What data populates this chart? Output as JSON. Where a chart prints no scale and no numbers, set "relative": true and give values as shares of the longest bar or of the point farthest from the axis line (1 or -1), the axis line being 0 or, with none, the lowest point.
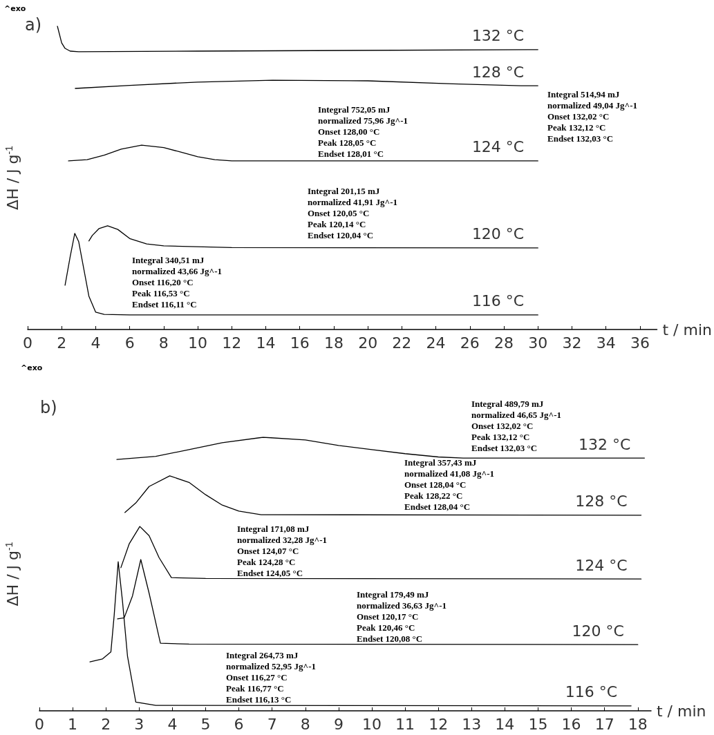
{
  "chart_data": [
    {
      "type": "line",
      "title": "a)",
      "xlabel": "t / min",
      "ylabel": "ΔH / J g$^{-1}$",
      "relative": true,
      "marker": "none",
      "line_style": "solid",
      "xlim": [
        0,
        37
      ],
      "xticks": [
        0,
        2,
        4,
        6,
        8,
        10,
        12,
        14,
        16,
        18,
        20,
        22,
        24,
        26,
        28,
        30,
        32,
        34,
        36
      ],
      "series": [
        {
          "name": "132 °C",
          "color": "#000000",
          "x": [
            1.75,
            2.0,
            2.2,
            2.5,
            3,
            10,
            30
          ],
          "values": [
            1.0,
            0.945,
            0.927,
            0.918,
            0.916,
            0.918,
            0.923
          ]
        },
        {
          "name": "128 °C",
          "color": "#000000",
          "x": [
            2.8,
            6,
            10,
            14.4,
            20,
            25,
            29,
            30
          ],
          "values": [
            0.795,
            0.805,
            0.816,
            0.822,
            0.82,
            0.81,
            0.804,
            0.804
          ]
        },
        {
          "name": "124 °C",
          "color": "#000000",
          "x": [
            2.4,
            3.5,
            4.5,
            5.5,
            6.7,
            8,
            9,
            10,
            11,
            12,
            30
          ],
          "values": [
            0.556,
            0.56,
            0.575,
            0.595,
            0.608,
            0.6,
            0.585,
            0.57,
            0.56,
            0.556,
            0.556
          ]
        },
        {
          "name": "120 °C",
          "color": "#000000",
          "x": [
            3.6,
            3.8,
            4.2,
            4.7,
            5.3,
            6,
            7,
            8,
            12,
            30
          ],
          "values": [
            0.292,
            0.31,
            0.333,
            0.342,
            0.33,
            0.3,
            0.282,
            0.276,
            0.27,
            0.269
          ]
        },
        {
          "name": "116 °C",
          "color": "#000000",
          "x": [
            2.2,
            2.5,
            2.77,
            3.0,
            3.3,
            3.6,
            4.0,
            4.5,
            6,
            30
          ],
          "values": [
            0.146,
            0.24,
            0.317,
            0.29,
            0.2,
            0.11,
            0.057,
            0.05,
            0.048,
            0.048
          ]
        }
      ],
      "annotations": [
        "^exo",
        "Integral 514,94 mJ\nnormalized 49,04 Jg^-1\nOnset 132,02 °C\nPeak 132,12 °C\nEndset 132,03 °C",
        "Integral 752,05 mJ\nnormalized 75,96 Jg^-1\nOnset 128,00 °C\nPeak 128,05 °C\nEndset 128,01 °C",
        "Integral 201,15 mJ\nnormalized 41,91 Jg^-1\nOnset 120,05 °C\nPeak 120,14 °C\nEndset 120,04 °C",
        "Integral 340,51 mJ\nnormalized 43,66 Jg^-1\nOnset 116,20 °C\nPeak 116,53 °C\nEndset 116,11 °C"
      ]
    },
    {
      "type": "line",
      "title": "b)",
      "xlabel": "t / min",
      "ylabel": "ΔH / J g$^{-1}$",
      "relative": true,
      "marker": "none",
      "line_style": "solid",
      "xlim": [
        0,
        18.4
      ],
      "xticks": [
        0,
        1,
        2,
        3,
        4,
        5,
        6,
        7,
        8,
        9,
        10,
        11,
        12,
        13,
        14,
        15,
        16,
        17,
        18
      ],
      "series": [
        {
          "name": "132 °C",
          "color": "#000000",
          "x": [
            2.33,
            3.5,
            4.5,
            5.5,
            6.73,
            8,
            9,
            10,
            11,
            12,
            12.75,
            18.2
          ],
          "values": [
            0.919,
            0.93,
            0.955,
            0.98,
            1.0,
            0.99,
            0.97,
            0.955,
            0.94,
            0.928,
            0.924,
            0.924
          ]
        },
        {
          "name": "128 °C",
          "color": "#000000",
          "x": [
            2.57,
            2.9,
            3.3,
            3.92,
            4.5,
            5,
            5.5,
            6,
            6.67,
            18.1
          ],
          "values": [
            0.725,
            0.76,
            0.82,
            0.859,
            0.835,
            0.79,
            0.752,
            0.73,
            0.717,
            0.715
          ]
        },
        {
          "name": "124 °C",
          "color": "#000000",
          "x": [
            2.45,
            2.7,
            3.02,
            3.3,
            3.6,
            3.97,
            5,
            18.1
          ],
          "values": [
            0.523,
            0.61,
            0.674,
            0.64,
            0.56,
            0.487,
            0.484,
            0.482
          ]
        },
        {
          "name": "120 °C",
          "color": "#000000",
          "x": [
            2.35,
            2.55,
            2.8,
            3.05,
            3.3,
            3.64,
            4.5,
            18
          ],
          "values": [
            0.336,
            0.34,
            0.42,
            0.553,
            0.43,
            0.247,
            0.244,
            0.242
          ]
        },
        {
          "name": "116 °C",
          "color": "#000000",
          "x": [
            1.52,
            1.9,
            2.15,
            2.25,
            2.37,
            2.5,
            2.65,
            2.9,
            3.5,
            17.8
          ],
          "values": [
            0.179,
            0.19,
            0.215,
            0.35,
            0.545,
            0.4,
            0.2,
            0.032,
            0.02,
            0.018
          ]
        }
      ],
      "annotations": [
        "^exo",
        "Integral 489,79 mJ\nnormalized 46,65 Jg^-1\nOnset 132,02 °C\nPeak 132,12 °C\nEndset 132,03 °C",
        "Integral 357,43 mJ\nnormalized 41,08 Jg^-1\nOnset 128,04 °C\nPeak 128,22 °C\nEndset 128,04 °C",
        "Integral 171,08 mJ\nnormalized 32,28 Jg^-1\nOnset 124,07 °C\nPeak 124,28 °C\nEndset 124,05 °C",
        "Integral 179,49 mJ\nnormalized 36,63 Jg^-1\nOnset 120,17 °C\nPeak 120,46 °C\nEndset 120,08 °C",
        "Integral 264,73 mJ\nnormalized 52,95 Jg^-1\nOnset 116,27 °C\nPeak 116,77 °C\nEndset 116,13 °C"
      ]
    }
  ]
}
